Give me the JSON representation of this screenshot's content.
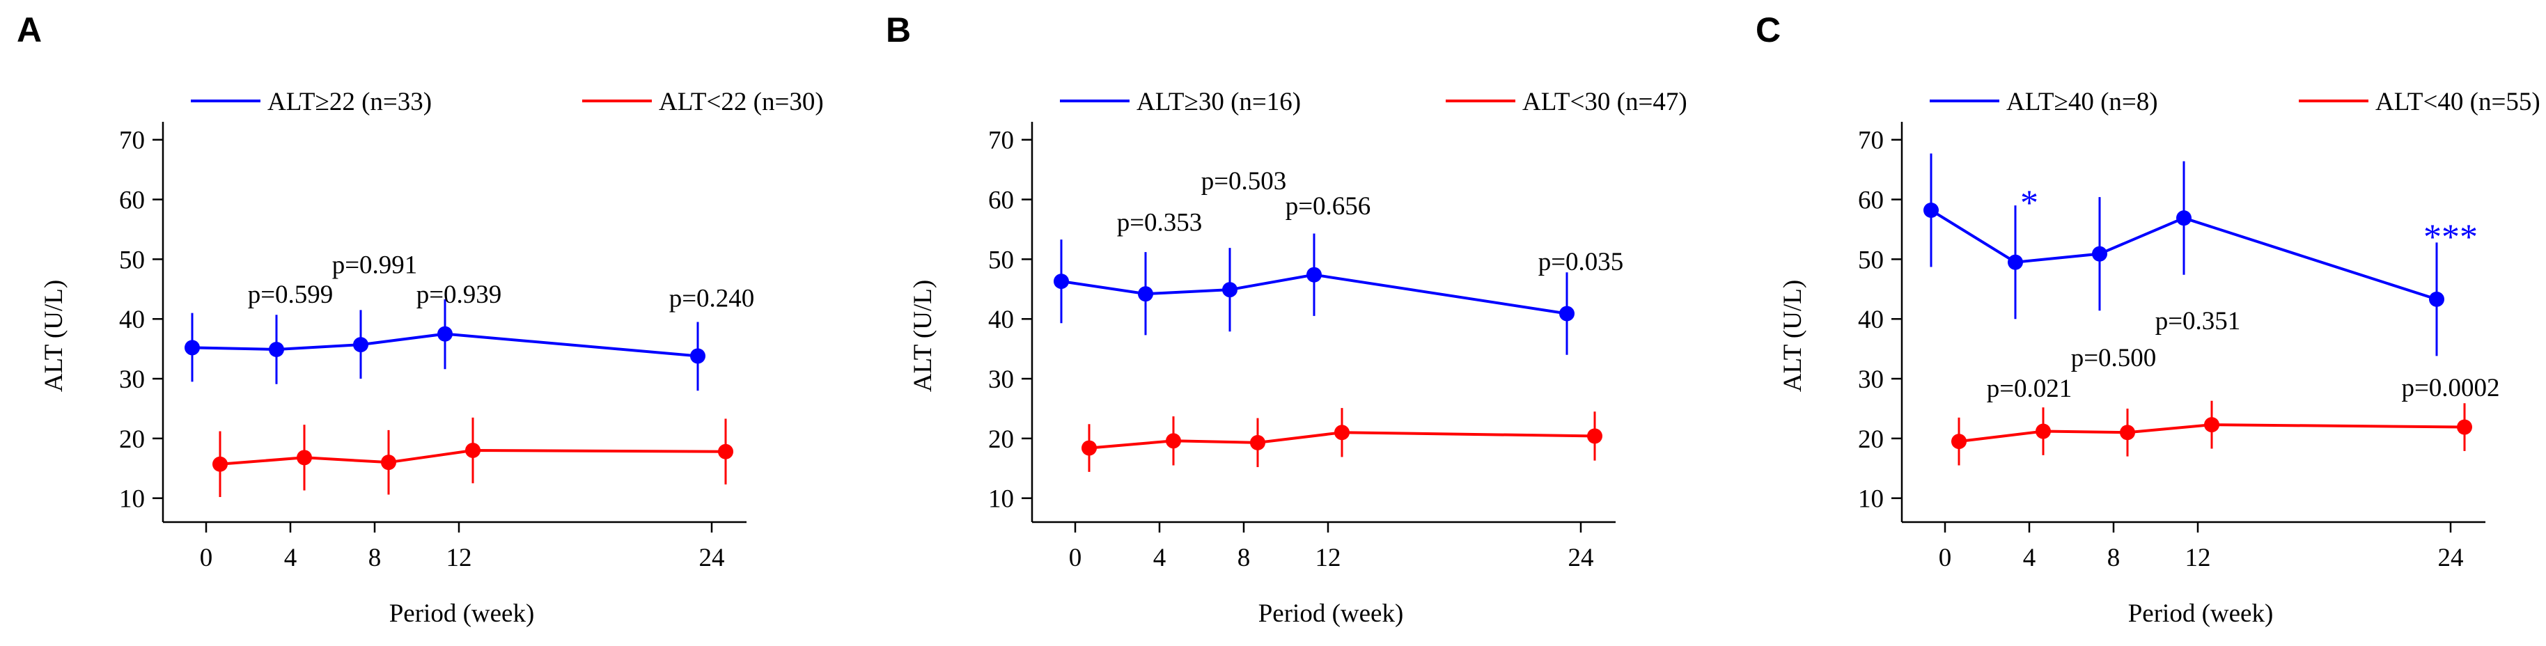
{
  "chart_data": [
    {
      "type": "line",
      "panel": "A",
      "xlabel": "Period (week)",
      "ylabel": "ALT (U/L)",
      "xticks": [
        0,
        4,
        8,
        12,
        24
      ],
      "yticks": [
        10,
        20,
        30,
        40,
        50,
        60,
        70
      ],
      "ylim": [
        6,
        73
      ],
      "grid": false,
      "legend_position": "top",
      "series": [
        {
          "name": "ALT≥22 (n=33)",
          "color": "#0000ff",
          "x": [
            0,
            4,
            8,
            12,
            24
          ],
          "values": [
            35.2,
            34.9,
            35.7,
            37.5,
            33.8
          ],
          "err_low": [
            29.5,
            29.1,
            30.0,
            31.6,
            28.0
          ],
          "err_high": [
            41.0,
            40.7,
            41.5,
            43.3,
            39.5
          ]
        },
        {
          "name": "ALT<22 (n=30)",
          "color": "#ff0000",
          "x": [
            0,
            4,
            8,
            12,
            24
          ],
          "values": [
            15.7,
            16.8,
            16.0,
            18.0,
            17.8
          ],
          "err_low": [
            10.2,
            11.3,
            10.6,
            12.5,
            12.3
          ],
          "err_high": [
            21.2,
            22.3,
            21.4,
            23.5,
            23.3
          ]
        }
      ],
      "annotations": [
        {
          "text": "p=0.599",
          "x": 4,
          "y": 44.2
        },
        {
          "text": "p=0.991",
          "x": 8,
          "y": 49.2
        },
        {
          "text": "p=0.939",
          "x": 12,
          "y": 44.2
        },
        {
          "text": "p=0.240",
          "x": 24,
          "y": 43.6
        }
      ]
    },
    {
      "type": "line",
      "panel": "B",
      "xlabel": "Period (week)",
      "ylabel": "ALT (U/L)",
      "xticks": [
        0,
        4,
        8,
        12,
        24
      ],
      "yticks": [
        10,
        20,
        30,
        40,
        50,
        60,
        70
      ],
      "ylim": [
        6,
        73
      ],
      "grid": false,
      "legend_position": "top",
      "series": [
        {
          "name": "ALT≥30 (n=16)",
          "color": "#0000ff",
          "x": [
            0,
            4,
            8,
            12,
            24
          ],
          "values": [
            46.3,
            44.2,
            44.9,
            47.4,
            40.9
          ],
          "err_low": [
            39.3,
            37.3,
            37.9,
            40.5,
            34.0
          ],
          "err_high": [
            53.3,
            51.2,
            51.9,
            54.3,
            47.8
          ]
        },
        {
          "name": "ALT<30 (n=47)",
          "color": "#ff0000",
          "x": [
            0,
            4,
            8,
            12,
            24
          ],
          "values": [
            18.4,
            19.6,
            19.3,
            21.0,
            20.4
          ],
          "err_low": [
            14.4,
            15.5,
            15.2,
            16.9,
            16.3
          ],
          "err_high": [
            22.4,
            23.7,
            23.4,
            25.1,
            24.5
          ]
        }
      ],
      "annotations": [
        {
          "text": "p=0.353",
          "x": 4,
          "y": 56.3
        },
        {
          "text": "p=0.503",
          "x": 8,
          "y": 63.2
        },
        {
          "text": "p=0.656",
          "x": 12,
          "y": 59.0
        },
        {
          "text": "p=0.035",
          "x": 24,
          "y": 49.7
        }
      ]
    },
    {
      "type": "line",
      "panel": "C",
      "xlabel": "Period (week)",
      "ylabel": "ALT (U/L)",
      "xticks": [
        0,
        4,
        8,
        12,
        24
      ],
      "yticks": [
        10,
        20,
        30,
        40,
        50,
        60,
        70
      ],
      "ylim": [
        6,
        73
      ],
      "grid": false,
      "legend_position": "top",
      "series": [
        {
          "name": "ALT≥40 (n=8)",
          "color": "#0000ff",
          "x": [
            0,
            4,
            8,
            12,
            24
          ],
          "values": [
            58.2,
            49.5,
            50.9,
            56.9,
            43.3
          ],
          "err_low": [
            48.7,
            40.0,
            41.4,
            47.4,
            33.8
          ],
          "err_high": [
            67.7,
            59.0,
            60.4,
            66.4,
            52.8
          ]
        },
        {
          "name": "ALT<40 (n=55)",
          "color": "#ff0000",
          "x": [
            0,
            4,
            8,
            12,
            24
          ],
          "values": [
            19.5,
            21.2,
            21.0,
            22.3,
            21.9
          ],
          "err_low": [
            15.5,
            17.2,
            17.0,
            18.3,
            17.9
          ],
          "err_high": [
            23.5,
            25.2,
            25.0,
            26.3,
            25.9
          ]
        }
      ],
      "annotations": [
        {
          "text": "*",
          "x": 4,
          "y": 60.7,
          "color": "#0000ff",
          "size": "large"
        },
        {
          "text": "***",
          "x": 24,
          "y": 55.0,
          "color": "#0000ff",
          "size": "large"
        },
        {
          "text": "p=0.021",
          "x": 4,
          "y": 28.5
        },
        {
          "text": "p=0.500",
          "x": 8,
          "y": 33.6
        },
        {
          "text": "p=0.351",
          "x": 12,
          "y": 39.8
        },
        {
          "text": "p=0.0002",
          "x": 24,
          "y": 28.6
        }
      ]
    }
  ]
}
